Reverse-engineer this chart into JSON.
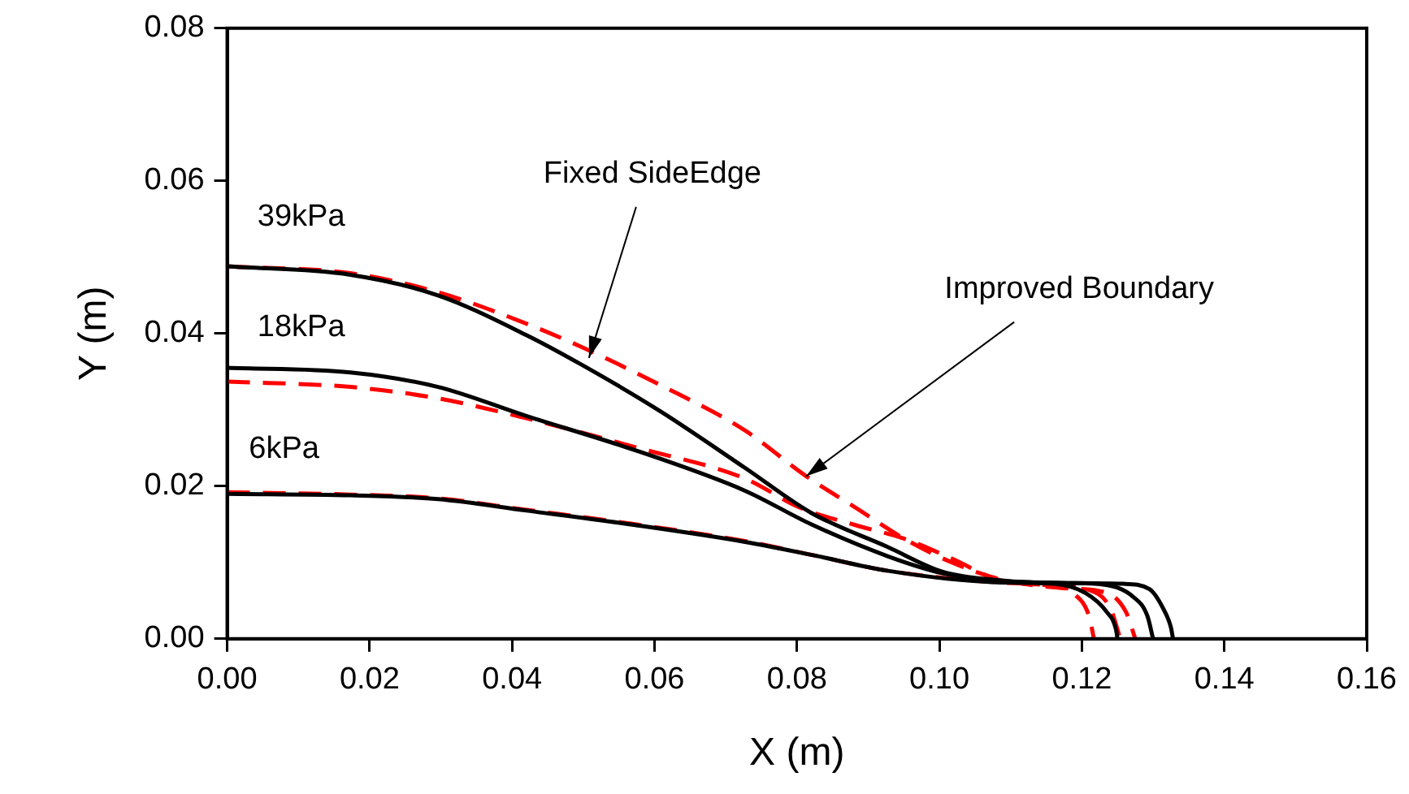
{
  "chart_data": {
    "type": "line",
    "xlabel": "X (m)",
    "ylabel": "Y (m)",
    "xlim": [
      0,
      0.16
    ],
    "xticks": [
      {
        "value": 0,
        "label": "0.00"
      },
      {
        "value": 0.02,
        "label": "0.02"
      },
      {
        "value": 0.04,
        "label": "0.04"
      },
      {
        "value": 0.06,
        "label": "0.06"
      },
      {
        "value": 0.08,
        "label": "0.08"
      },
      {
        "value": 0.1,
        "label": "0.10"
      },
      {
        "value": 0.12,
        "label": "0.12"
      },
      {
        "value": 0.14,
        "label": "0.14"
      },
      {
        "value": 0.16,
        "label": "0.16"
      }
    ],
    "ylim": [
      0,
      0.08
    ],
    "yticks": [
      {
        "value": 0,
        "label": "0.00"
      },
      {
        "value": 0.02,
        "label": "0.02"
      },
      {
        "value": 0.04,
        "label": "0.04"
      },
      {
        "value": 0.06,
        "label": "0.06"
      },
      {
        "value": 0.08,
        "label": "0.08"
      }
    ],
    "grid": false,
    "legend": false,
    "marker": "none",
    "annotations": [
      {
        "text": "Fixed SideEdge",
        "x": 0.0508,
        "y": 0.0368
      },
      {
        "text": "Improved Boundary",
        "x": 0.0813,
        "y": 0.0213
      },
      "39kPa",
      "18kPa",
      "6kPa"
    ],
    "series": [
      {
        "color": "#000000",
        "line_style": "solid",
        "x": [
          0,
          0.0173,
          0.0296,
          0.042,
          0.0496,
          0.0605,
          0.0727,
          0.082,
          0.0928,
          0.1004,
          0.108,
          0.118,
          0.1258,
          0.1295,
          0.1314,
          0.1325,
          0.1328
        ],
        "values": [
          0.0488,
          0.0477,
          0.045,
          0.0398,
          0.036,
          0.03,
          0.0224,
          0.0165,
          0.012,
          0.0088,
          0.0077,
          0.0073,
          0.0072,
          0.0065,
          0.004,
          0.0015,
          0
        ]
      },
      {
        "color": "#000000",
        "line_style": "solid",
        "x": [
          0,
          0.0173,
          0.0296,
          0.042,
          0.0573,
          0.0727,
          0.082,
          0.0928,
          0.1004,
          0.108,
          0.118,
          0.123,
          0.1272,
          0.1292,
          0.13
        ],
        "values": [
          0.0355,
          0.0349,
          0.033,
          0.0292,
          0.0247,
          0.0194,
          0.015,
          0.0108,
          0.0086,
          0.0076,
          0.0073,
          0.0071,
          0.0055,
          0.003,
          0
        ]
      },
      {
        "color": "#000000",
        "line_style": "solid",
        "x": [
          0,
          0.0173,
          0.0296,
          0.042,
          0.0573,
          0.0727,
          0.082,
          0.0928,
          0.108,
          0.116,
          0.1205,
          0.1235,
          0.1248,
          0.125
        ],
        "values": [
          0.019,
          0.0188,
          0.0183,
          0.0168,
          0.0149,
          0.0127,
          0.011,
          0.0089,
          0.0074,
          0.0072,
          0.006,
          0.0035,
          0.0012,
          0
        ]
      },
      {
        "color": "#ff0000",
        "line_style": "dashed",
        "x": [
          0,
          0.0173,
          0.0296,
          0.042,
          0.0496,
          0.0605,
          0.0727,
          0.0813,
          0.0882,
          0.0951,
          0.102,
          0.109,
          0.118,
          0.1235,
          0.1262,
          0.1275
        ],
        "values": [
          0.0488,
          0.0479,
          0.0454,
          0.0413,
          0.0383,
          0.0334,
          0.0273,
          0.0213,
          0.0172,
          0.0131,
          0.0099,
          0.0077,
          0.0066,
          0.006,
          0.0035,
          0
        ]
      },
      {
        "color": "#ff0000",
        "line_style": "dashed",
        "x": [
          0,
          0.0173,
          0.0296,
          0.042,
          0.0573,
          0.0727,
          0.0804,
          0.0882,
          0.0951,
          0.102,
          0.108,
          0.116,
          0.121,
          0.124,
          0.1254
        ],
        "values": [
          0.0337,
          0.033,
          0.0315,
          0.0289,
          0.0251,
          0.021,
          0.0172,
          0.0149,
          0.0131,
          0.0104,
          0.0078,
          0.007,
          0.0064,
          0.004,
          0
        ]
      },
      {
        "color": "#ff0000",
        "line_style": "dashed",
        "x": [
          0,
          0.0173,
          0.0296,
          0.042,
          0.0573,
          0.0727,
          0.082,
          0.0928,
          0.108,
          0.115,
          0.119,
          0.121,
          0.1217
        ],
        "values": [
          0.0192,
          0.0189,
          0.0184,
          0.0169,
          0.015,
          0.0128,
          0.011,
          0.0089,
          0.0074,
          0.007,
          0.0058,
          0.003,
          0
        ]
      }
    ]
  }
}
